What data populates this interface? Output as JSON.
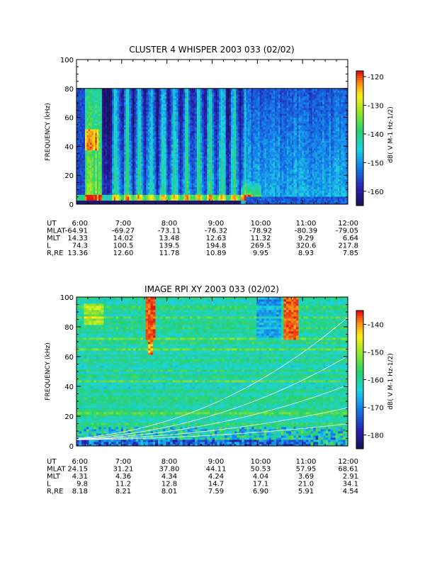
{
  "panels": [
    {
      "title": "CLUSTER 4 WHISPER 2003 033 (02/02)",
      "ylabel": "FREQUENCY (kHz)",
      "y_ticks": [
        "0",
        "20",
        "40",
        "60",
        "80",
        "100"
      ],
      "cbar_ticks": [
        "-120",
        "-130",
        "-140",
        "-150",
        "-160"
      ],
      "cbar_label": "dB( V M-1 Hz-1/2)",
      "x_ticks": [
        "6:00",
        "7:00",
        "8:00",
        "9:00",
        "10:00",
        "11:00",
        "12:00"
      ],
      "ephemeris": [
        {
          "label": "UT",
          "values": [
            "6:00",
            "7:00",
            "8:00",
            "9:00",
            "10:00",
            "11:00",
            "12:00"
          ]
        },
        {
          "label": "MLAT",
          "values": [
            "-64.91",
            "-69.27",
            "-73.11",
            "-76.32",
            "-78.92",
            "-80.39",
            "-79.05"
          ]
        },
        {
          "label": "MLT",
          "values": [
            "14.33",
            "14.02",
            "13.48",
            "12.63",
            "11.32",
            "9.29",
            "6.64"
          ]
        },
        {
          "label": "L",
          "values": [
            "74.3",
            "100.5",
            "139.5",
            "194.8",
            "269.5",
            "320.6",
            "217.8"
          ]
        },
        {
          "label": "R,RE",
          "values": [
            "13.36",
            "12.60",
            "11.78",
            "10.89",
            "9.95",
            "8.93",
            "7.85"
          ]
        }
      ]
    },
    {
      "title": "IMAGE RPI XY 2003 033 (02/02)",
      "ylabel": "FREQUENCY (kHz)",
      "y_ticks": [
        "0",
        "20",
        "40",
        "60",
        "80",
        "100"
      ],
      "cbar_ticks": [
        "-140",
        "-150",
        "-160",
        "-170",
        "-180"
      ],
      "cbar_label": "dB( V M-1 Hz-1/2)",
      "x_ticks": [
        "6:00",
        "7:00",
        "8:00",
        "9:00",
        "10:00",
        "11:00",
        "12:00"
      ],
      "ephemeris": [
        {
          "label": "UT",
          "values": [
            "6:00",
            "7:00",
            "8:00",
            "9:00",
            "10:00",
            "11:00",
            "12:00"
          ]
        },
        {
          "label": "MLAT",
          "values": [
            "24.15",
            "31.21",
            "37.80",
            "44.11",
            "50.53",
            "57.95",
            "68.61"
          ]
        },
        {
          "label": "MLT",
          "values": [
            "4.31",
            "4.36",
            "4.34",
            "4.24",
            "4.04",
            "3.69",
            "2.91"
          ]
        },
        {
          "label": "L",
          "values": [
            "9.8",
            "11.2",
            "12.8",
            "14.7",
            "17.1",
            "21.0",
            "34.1"
          ]
        },
        {
          "label": "R,RE",
          "values": [
            "8.18",
            "8.21",
            "8.01",
            "7.59",
            "6.90",
            "5.91",
            "4.54"
          ]
        }
      ]
    }
  ],
  "chart_data": [
    {
      "type": "heatmap",
      "title": "CLUSTER 4 WHISPER 2003 033 (02/02)",
      "ylabel": "FREQUENCY (kHz)",
      "xlabel": "UT",
      "x_range": [
        "6:00",
        "12:00"
      ],
      "ylim": [
        0,
        100
      ],
      "data_max_frequency_khz": 80,
      "colorbar": {
        "label": "dB( V M-1 Hz-1/2)",
        "range": [
          -165,
          -118
        ],
        "ticks": [
          -120,
          -130,
          -140,
          -150,
          -160
        ]
      }
    },
    {
      "type": "heatmap",
      "title": "IMAGE RPI XY 2003 033 (02/02)",
      "ylabel": "FREQUENCY (kHz)",
      "xlabel": "UT",
      "x_range": [
        "6:00",
        "12:00"
      ],
      "ylim": [
        0,
        100
      ],
      "colorbar": {
        "label": "dB( V M-1 Hz-1/2)",
        "range": [
          -185,
          -135
        ],
        "ticks": [
          -140,
          -150,
          -160,
          -170,
          -180
        ]
      }
    }
  ]
}
